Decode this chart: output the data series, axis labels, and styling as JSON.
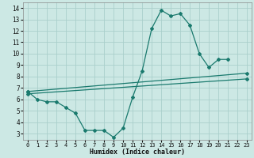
{
  "background_color": "#cce8e4",
  "grid_color": "#aacfcb",
  "line_color": "#1a7a6e",
  "xlabel": "Humidex (Indice chaleur)",
  "xlim": [
    -0.5,
    23.5
  ],
  "ylim": [
    2.5,
    14.5
  ],
  "xticks": [
    0,
    1,
    2,
    3,
    4,
    5,
    6,
    7,
    8,
    9,
    10,
    11,
    12,
    13,
    14,
    15,
    16,
    17,
    18,
    19,
    20,
    21,
    22,
    23
  ],
  "yticks": [
    3,
    4,
    5,
    6,
    7,
    8,
    9,
    10,
    11,
    12,
    13,
    14
  ],
  "main_x": [
    0,
    1,
    2,
    3,
    4,
    5,
    6,
    7,
    8,
    9,
    10,
    11,
    12,
    13,
    14,
    15,
    16,
    17,
    18,
    19,
    20,
    21
  ],
  "main_y": [
    6.7,
    6.0,
    5.8,
    5.8,
    5.3,
    4.8,
    3.3,
    3.3,
    3.3,
    2.7,
    3.5,
    6.2,
    8.5,
    12.2,
    13.8,
    13.3,
    13.5,
    12.5,
    10.0,
    8.8,
    9.5,
    9.5
  ],
  "line1_x": [
    0,
    23
  ],
  "line1_y": [
    6.7,
    8.3
  ],
  "line2_x": [
    0,
    23
  ],
  "line2_y": [
    6.5,
    7.8
  ],
  "marker": "D",
  "markersize": 2.0,
  "linewidth": 0.9
}
